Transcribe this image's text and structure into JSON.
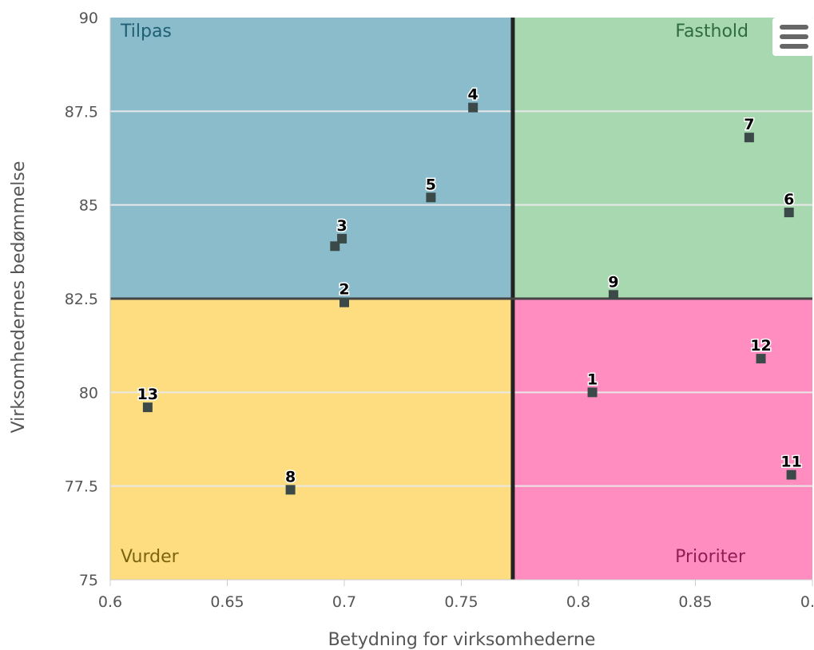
{
  "chart_data": {
    "type": "scatter",
    "xlabel": "Betydning for virksomhederne",
    "ylabel": "Virksomhedernes bedømmelse",
    "xlim": [
      0.6,
      0.9
    ],
    "ylim": [
      75,
      90
    ],
    "x_ticks": [
      "0.6",
      "0.65",
      "0.7",
      "0.75",
      "0.8",
      "0.85",
      "0.9"
    ],
    "y_ticks": [
      "75",
      "77.5",
      "80",
      "82.5",
      "85",
      "87.5",
      "90"
    ],
    "grid": "horizontal",
    "legend": "none",
    "dividers": {
      "x": 0.772,
      "y": 82.5
    },
    "quadrants": [
      {
        "label": "Tilpas",
        "fill": "#8BBCCB",
        "text_color": "#1E5F73"
      },
      {
        "label": "Fasthold",
        "fill": "#A8D8B0",
        "text_color": "#2F6B3E"
      },
      {
        "label": "Vurder",
        "fill": "#FDDD7F",
        "text_color": "#7C6410"
      },
      {
        "label": "Prioriter",
        "fill": "#FF8DBF",
        "text_color": "#8E1F56"
      }
    ],
    "points": [
      {
        "label": "1",
        "x": 0.806,
        "y": 80.0
      },
      {
        "label": "2",
        "x": 0.7,
        "y": 82.4
      },
      {
        "label": "3",
        "x": 0.699,
        "y": 84.1
      },
      {
        "label": "",
        "x": 0.696,
        "y": 83.9
      },
      {
        "label": "4",
        "x": 0.755,
        "y": 87.6
      },
      {
        "label": "5",
        "x": 0.737,
        "y": 85.2
      },
      {
        "label": "6",
        "x": 0.89,
        "y": 84.8
      },
      {
        "label": "7",
        "x": 0.873,
        "y": 86.8
      },
      {
        "label": "8",
        "x": 0.677,
        "y": 77.4
      },
      {
        "label": "9",
        "x": 0.815,
        "y": 82.6
      },
      {
        "label": "11",
        "x": 0.891,
        "y": 77.8
      },
      {
        "label": "12",
        "x": 0.878,
        "y": 80.9
      },
      {
        "label": "13",
        "x": 0.616,
        "y": 79.6
      }
    ],
    "marker_color": "#3B4A48"
  },
  "ui": {
    "menu_icon": "hamburger-menu-icon"
  }
}
